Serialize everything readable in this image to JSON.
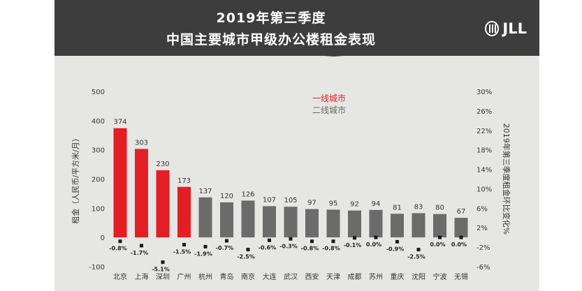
{
  "title": {
    "line1": "2019年第三季度",
    "line2": "中国主要城市甲级办公楼租金表现"
  },
  "logo": {
    "text": "JLL"
  },
  "colors": {
    "tier1": "#e31e24",
    "tier2": "#6b6b6b",
    "banner": "#3d3d3d",
    "marker": "#1a1a1a"
  },
  "chart_data": {
    "type": "bar",
    "title": "2019年第三季度 中国主要城市甲级办公楼租金表现",
    "ylabel": "租金（人民币/平方米/月）",
    "y2label": "2019年第三季度租金环比变化%",
    "ylim": [
      -100,
      500
    ],
    "y2lim": [
      -6,
      30
    ],
    "yticks": [
      -100,
      0,
      100,
      200,
      300,
      400,
      500
    ],
    "y2ticks": [
      "-6%",
      "-2%",
      "2%",
      "6%",
      "10%",
      "14%",
      "18%",
      "22%",
      "26%",
      "30%"
    ],
    "y2tick_values": [
      -6,
      -2,
      2,
      6,
      10,
      14,
      18,
      22,
      26,
      30
    ],
    "legend": {
      "placement": "top-center",
      "items": [
        {
          "label": "一线城市",
          "tier": "tier1"
        },
        {
          "label": "二线城市",
          "tier": "tier2"
        }
      ]
    },
    "categories": [
      "北京",
      "上海",
      "深圳",
      "广州",
      "杭州",
      "青岛",
      "南京",
      "大连",
      "武汉",
      "西安",
      "天津",
      "成都",
      "苏州",
      "重庆",
      "沈阳",
      "宁波",
      "无锡"
    ],
    "tiers": [
      "tier1",
      "tier1",
      "tier1",
      "tier1",
      "tier2",
      "tier2",
      "tier2",
      "tier2",
      "tier2",
      "tier2",
      "tier2",
      "tier2",
      "tier2",
      "tier2",
      "tier2",
      "tier2",
      "tier2"
    ],
    "series": [
      {
        "name": "租金（人民币/平方米/月）",
        "axis": "left",
        "values": [
          374,
          303,
          230,
          173,
          137,
          120,
          126,
          107,
          105,
          97,
          95,
          92,
          94,
          81,
          83,
          80,
          67
        ]
      },
      {
        "name": "2019年第三季度租金环比变化%",
        "axis": "right",
        "values": [
          -0.8,
          -1.7,
          -5.1,
          -1.5,
          -1.9,
          -0.7,
          -2.5,
          -0.6,
          -0.3,
          -0.8,
          -0.8,
          -0.1,
          0.0,
          -0.9,
          -2.5,
          0.0,
          0.0
        ],
        "labels": [
          "-0.8%",
          "-1.7%",
          "-5.1%",
          "-1.5%",
          "-1.9%",
          "-0.7%",
          "-2.5%",
          "-0.6%",
          "-0.3%",
          "-0.8%",
          "-0.8%",
          "-0.1%",
          "0.0%",
          "-0.9%",
          "-2.5%",
          "0.0%",
          "0.0%"
        ]
      }
    ]
  }
}
